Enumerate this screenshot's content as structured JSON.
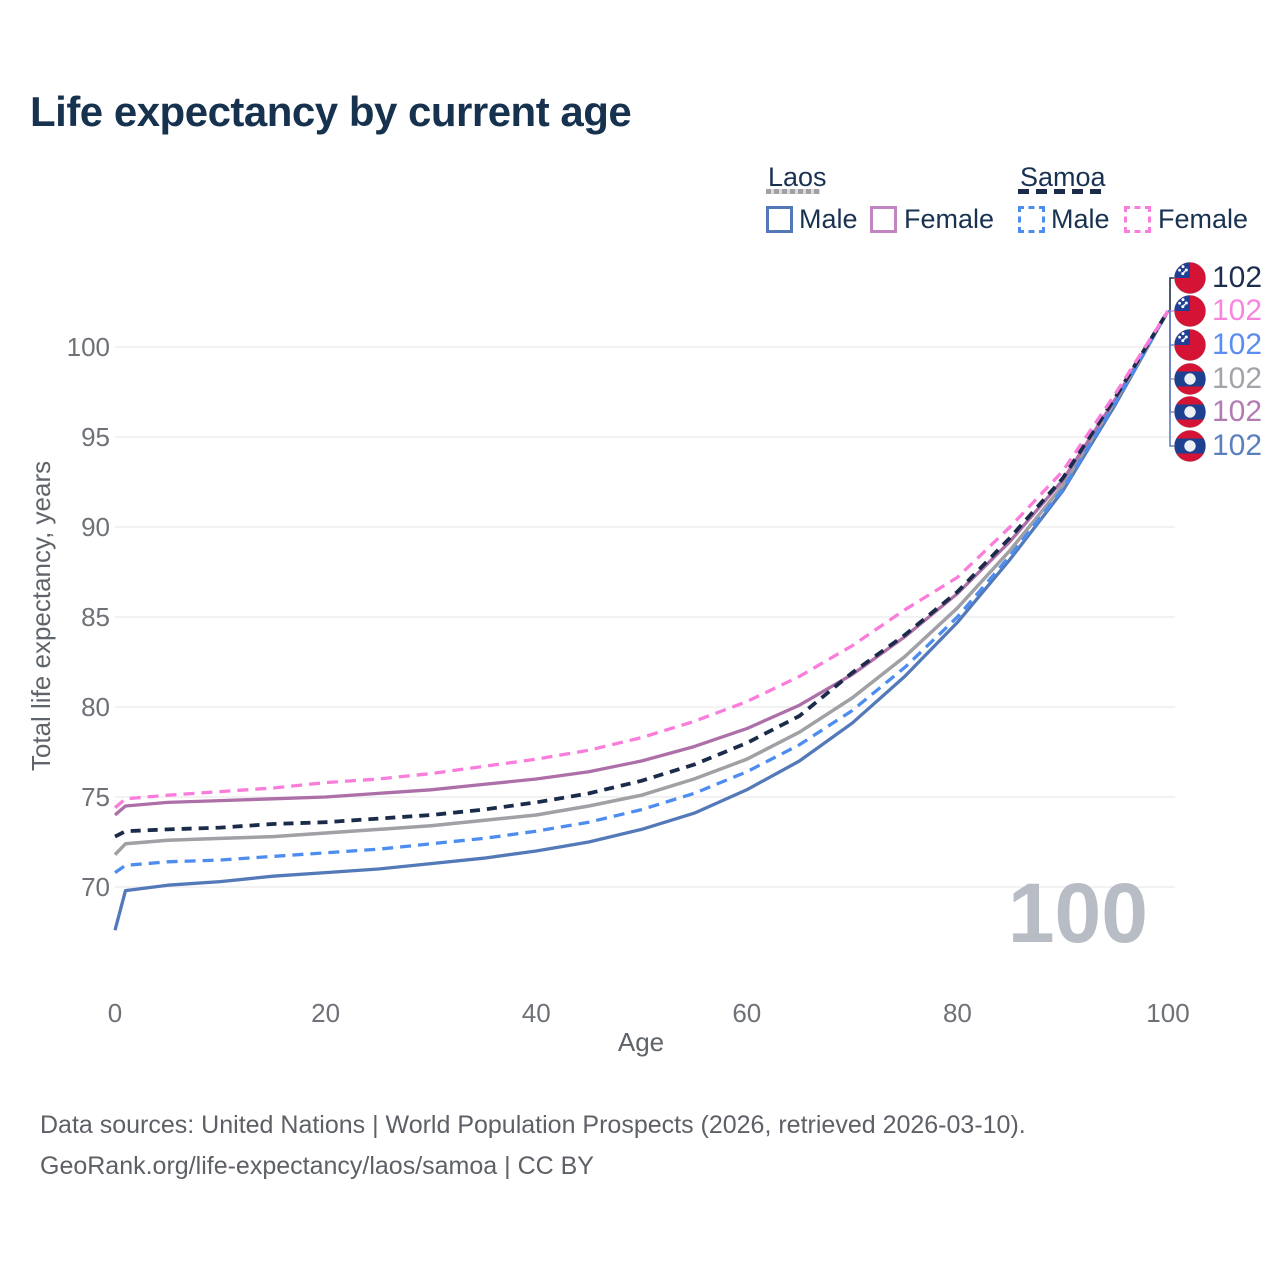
{
  "title": "Life expectancy by current age",
  "legend": {
    "groups": [
      {
        "label": "Laos",
        "line_style": "solid",
        "underline_color": "#a0a0a5",
        "items": [
          {
            "label": "Male",
            "color": "#5379b8",
            "dashed": false
          },
          {
            "label": "Female",
            "color": "#c285bf",
            "dashed": false
          }
        ]
      },
      {
        "label": "Samoa",
        "line_style": "dashed",
        "underline_color": "#1b2b4a",
        "items": [
          {
            "label": "Male",
            "color": "#4e8df0",
            "dashed": true
          },
          {
            "label": "Female",
            "color": "#fb7ddb",
            "dashed": true
          }
        ]
      }
    ]
  },
  "watermark_age": "100",
  "end_labels": [
    {
      "country": "samoa",
      "series": "Samoa Both sexes",
      "label": "102",
      "color": "#1d2f4c"
    },
    {
      "country": "samoa",
      "series": "Samoa Female",
      "label": "102",
      "color": "#fb85de"
    },
    {
      "country": "samoa",
      "series": "Samoa Male",
      "label": "102",
      "color": "#5b8df0"
    },
    {
      "country": "laos",
      "series": "Laos Both sexes",
      "label": "102",
      "color": "#a3a4a9"
    },
    {
      "country": "laos",
      "series": "Laos Female",
      "label": "102",
      "color": "#b27cb2"
    },
    {
      "country": "laos",
      "series": "Laos Male",
      "label": "102",
      "color": "#5b80bf"
    }
  ],
  "flag_colors": {
    "red": "#d41335",
    "samoa_blue": "#203f96",
    "laos_blue": "#1e4091",
    "white": "#eef0f4"
  },
  "footer": {
    "line1": "Data sources: United Nations | World Population Prospects (2026, retrieved 2026-03-10).",
    "line2": "GeoRank.org/life-expectancy/laos/samoa | CC BY"
  },
  "chart_data": {
    "type": "line",
    "title": "Life expectancy by current age",
    "xlabel": "Age",
    "ylabel": "Total life expectancy, years",
    "x_ticks": [
      0,
      20,
      40,
      60,
      80,
      100
    ],
    "y_ticks": [
      70,
      75,
      80,
      85,
      90,
      95,
      100
    ],
    "xlim": [
      0,
      100
    ],
    "ylim": [
      66,
      103.5
    ],
    "grid": "horizontal",
    "legend_position": "top-right",
    "x": [
      0,
      1,
      5,
      10,
      15,
      20,
      25,
      30,
      35,
      40,
      45,
      50,
      55,
      60,
      65,
      70,
      75,
      80,
      85,
      90,
      95,
      100
    ],
    "series": [
      {
        "name": "Laos Male",
        "country": "Laos",
        "sex": "Male",
        "color": "#5379b8",
        "dash": "solid",
        "width": 3.3,
        "values": [
          67.6,
          69.8,
          70.1,
          70.3,
          70.6,
          70.8,
          71.0,
          71.3,
          71.6,
          72.0,
          72.5,
          73.2,
          74.1,
          75.4,
          77.0,
          79.1,
          81.7,
          84.7,
          88.2,
          92.0,
          96.8,
          102
        ]
      },
      {
        "name": "Laos Both sexes",
        "country": "Laos",
        "sex": "Both",
        "color": "#a0a0a5",
        "dash": "solid",
        "width": 3.5,
        "values": [
          71.8,
          72.4,
          72.6,
          72.7,
          72.8,
          73.0,
          73.2,
          73.4,
          73.7,
          74.0,
          74.5,
          75.1,
          76.0,
          77.1,
          78.6,
          80.5,
          82.8,
          85.5,
          88.7,
          92.3,
          97.0,
          102
        ]
      },
      {
        "name": "Laos Female",
        "country": "Laos",
        "sex": "Female",
        "color": "#ad6fa8",
        "dash": "solid",
        "width": 3.3,
        "values": [
          74.0,
          74.5,
          74.7,
          74.8,
          74.9,
          75.0,
          75.2,
          75.4,
          75.7,
          76.0,
          76.4,
          77.0,
          77.8,
          78.8,
          80.1,
          81.8,
          83.9,
          86.3,
          89.2,
          92.6,
          97.1,
          102
        ]
      },
      {
        "name": "Samoa Male",
        "country": "Samoa",
        "sex": "Male",
        "color": "#4e8df0",
        "dash": "dashed",
        "width": 3.3,
        "values": [
          70.8,
          71.2,
          71.4,
          71.5,
          71.7,
          71.9,
          72.1,
          72.4,
          72.7,
          73.1,
          73.6,
          74.3,
          75.2,
          76.4,
          77.9,
          79.8,
          82.2,
          85.0,
          88.4,
          92.1,
          96.9,
          102
        ]
      },
      {
        "name": "Samoa Both sexes",
        "country": "Samoa",
        "sex": "Both",
        "color": "#1b2b4a",
        "dash": "dashed",
        "width": 3.8,
        "values": [
          72.8,
          73.1,
          73.2,
          73.3,
          73.5,
          73.6,
          73.8,
          74.0,
          74.3,
          74.7,
          75.2,
          75.9,
          76.8,
          78.0,
          79.5,
          81.9,
          84.0,
          86.4,
          89.4,
          92.7,
          97.2,
          102
        ]
      },
      {
        "name": "Samoa Female",
        "country": "Samoa",
        "sex": "Female",
        "color": "#fb7ddb",
        "dash": "dashed",
        "width": 3.3,
        "values": [
          74.4,
          74.9,
          75.1,
          75.3,
          75.5,
          75.8,
          76.0,
          76.3,
          76.7,
          77.1,
          77.6,
          78.3,
          79.2,
          80.3,
          81.7,
          83.4,
          85.4,
          87.2,
          90.0,
          93.1,
          97.4,
          102
        ]
      }
    ]
  }
}
